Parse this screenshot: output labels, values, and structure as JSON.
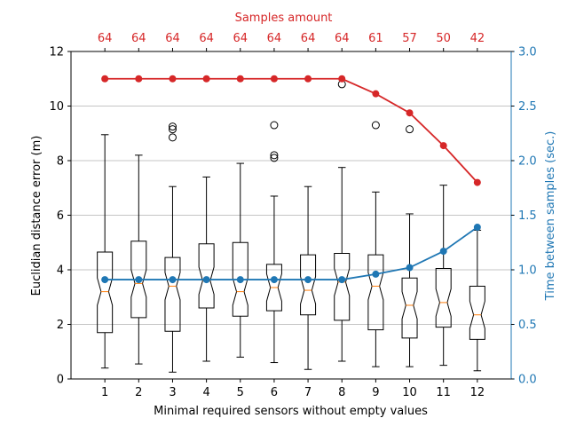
{
  "chart_data": {
    "type": "box",
    "xlabel": "Minimal required sensors without empty values",
    "ylabel": "Euclidian distance error (m)",
    "y2label": "Time between samples (sec.)",
    "toplabel": "Samples amount",
    "categories": [
      "1",
      "2",
      "3",
      "4",
      "5",
      "6",
      "7",
      "8",
      "9",
      "10",
      "11",
      "12"
    ],
    "ylim": [
      0,
      12
    ],
    "y2lim": [
      0.0,
      3.0
    ],
    "y_ticks": [
      "0",
      "2",
      "4",
      "6",
      "8",
      "10",
      "12"
    ],
    "y2_ticks": [
      "0.0",
      "0.5",
      "1.0",
      "1.5",
      "2.0",
      "2.5",
      "3.0"
    ],
    "grid": "horizontal",
    "samples_amount": [
      "64",
      "64",
      "64",
      "64",
      "64",
      "64",
      "64",
      "64",
      "61",
      "57",
      "50",
      "42"
    ],
    "boxes": [
      {
        "whislo": 0.4,
        "q1": 1.7,
        "med": 3.2,
        "q3": 4.65,
        "whishi": 8.95,
        "fliers": []
      },
      {
        "whislo": 0.55,
        "q1": 2.25,
        "med": 3.5,
        "q3": 5.05,
        "whishi": 8.2,
        "fliers": []
      },
      {
        "whislo": 0.25,
        "q1": 1.75,
        "med": 3.4,
        "q3": 4.45,
        "whishi": 7.05,
        "fliers": [
          8.85,
          9.15,
          9.25
        ]
      },
      {
        "whislo": 0.65,
        "q1": 2.6,
        "med": 3.6,
        "q3": 4.95,
        "whishi": 7.4,
        "fliers": []
      },
      {
        "whislo": 0.8,
        "q1": 2.3,
        "med": 3.2,
        "q3": 5.0,
        "whishi": 7.9,
        "fliers": []
      },
      {
        "whislo": 0.6,
        "q1": 2.5,
        "med": 3.35,
        "q3": 4.2,
        "whishi": 6.7,
        "fliers": [
          8.1,
          8.2,
          9.3
        ]
      },
      {
        "whislo": 0.35,
        "q1": 2.35,
        "med": 3.25,
        "q3": 4.55,
        "whishi": 7.05,
        "fliers": []
      },
      {
        "whislo": 0.65,
        "q1": 2.15,
        "med": 3.55,
        "q3": 4.6,
        "whishi": 7.75,
        "fliers": [
          10.8
        ]
      },
      {
        "whislo": 0.45,
        "q1": 1.8,
        "med": 3.4,
        "q3": 4.55,
        "whishi": 6.85,
        "fliers": [
          9.3
        ]
      },
      {
        "whislo": 0.45,
        "q1": 1.5,
        "med": 2.7,
        "q3": 3.7,
        "whishi": 6.05,
        "fliers": [
          9.15
        ]
      },
      {
        "whislo": 0.5,
        "q1": 1.9,
        "med": 2.8,
        "q3": 4.05,
        "whishi": 7.1,
        "fliers": []
      },
      {
        "whislo": 0.3,
        "q1": 1.45,
        "med": 2.35,
        "q3": 3.4,
        "whishi": 5.45,
        "fliers": []
      }
    ],
    "series": [
      {
        "values": [
          11,
          11,
          11,
          11,
          11,
          11,
          11,
          11,
          10.45,
          9.75,
          8.55,
          7.2
        ],
        "color": "#d62728",
        "axis": "left"
      },
      {
        "values": [
          0.91,
          0.91,
          0.91,
          0.91,
          0.91,
          0.91,
          0.91,
          0.91,
          0.96,
          1.02,
          1.17,
          1.39
        ],
        "color": "#1f77b4",
        "axis": "right"
      }
    ],
    "colors": {
      "top_axis": "#d62728",
      "right_axis": "#1f77b4",
      "median": "#ff7f0e",
      "grid": "#b0b0b0"
    }
  }
}
